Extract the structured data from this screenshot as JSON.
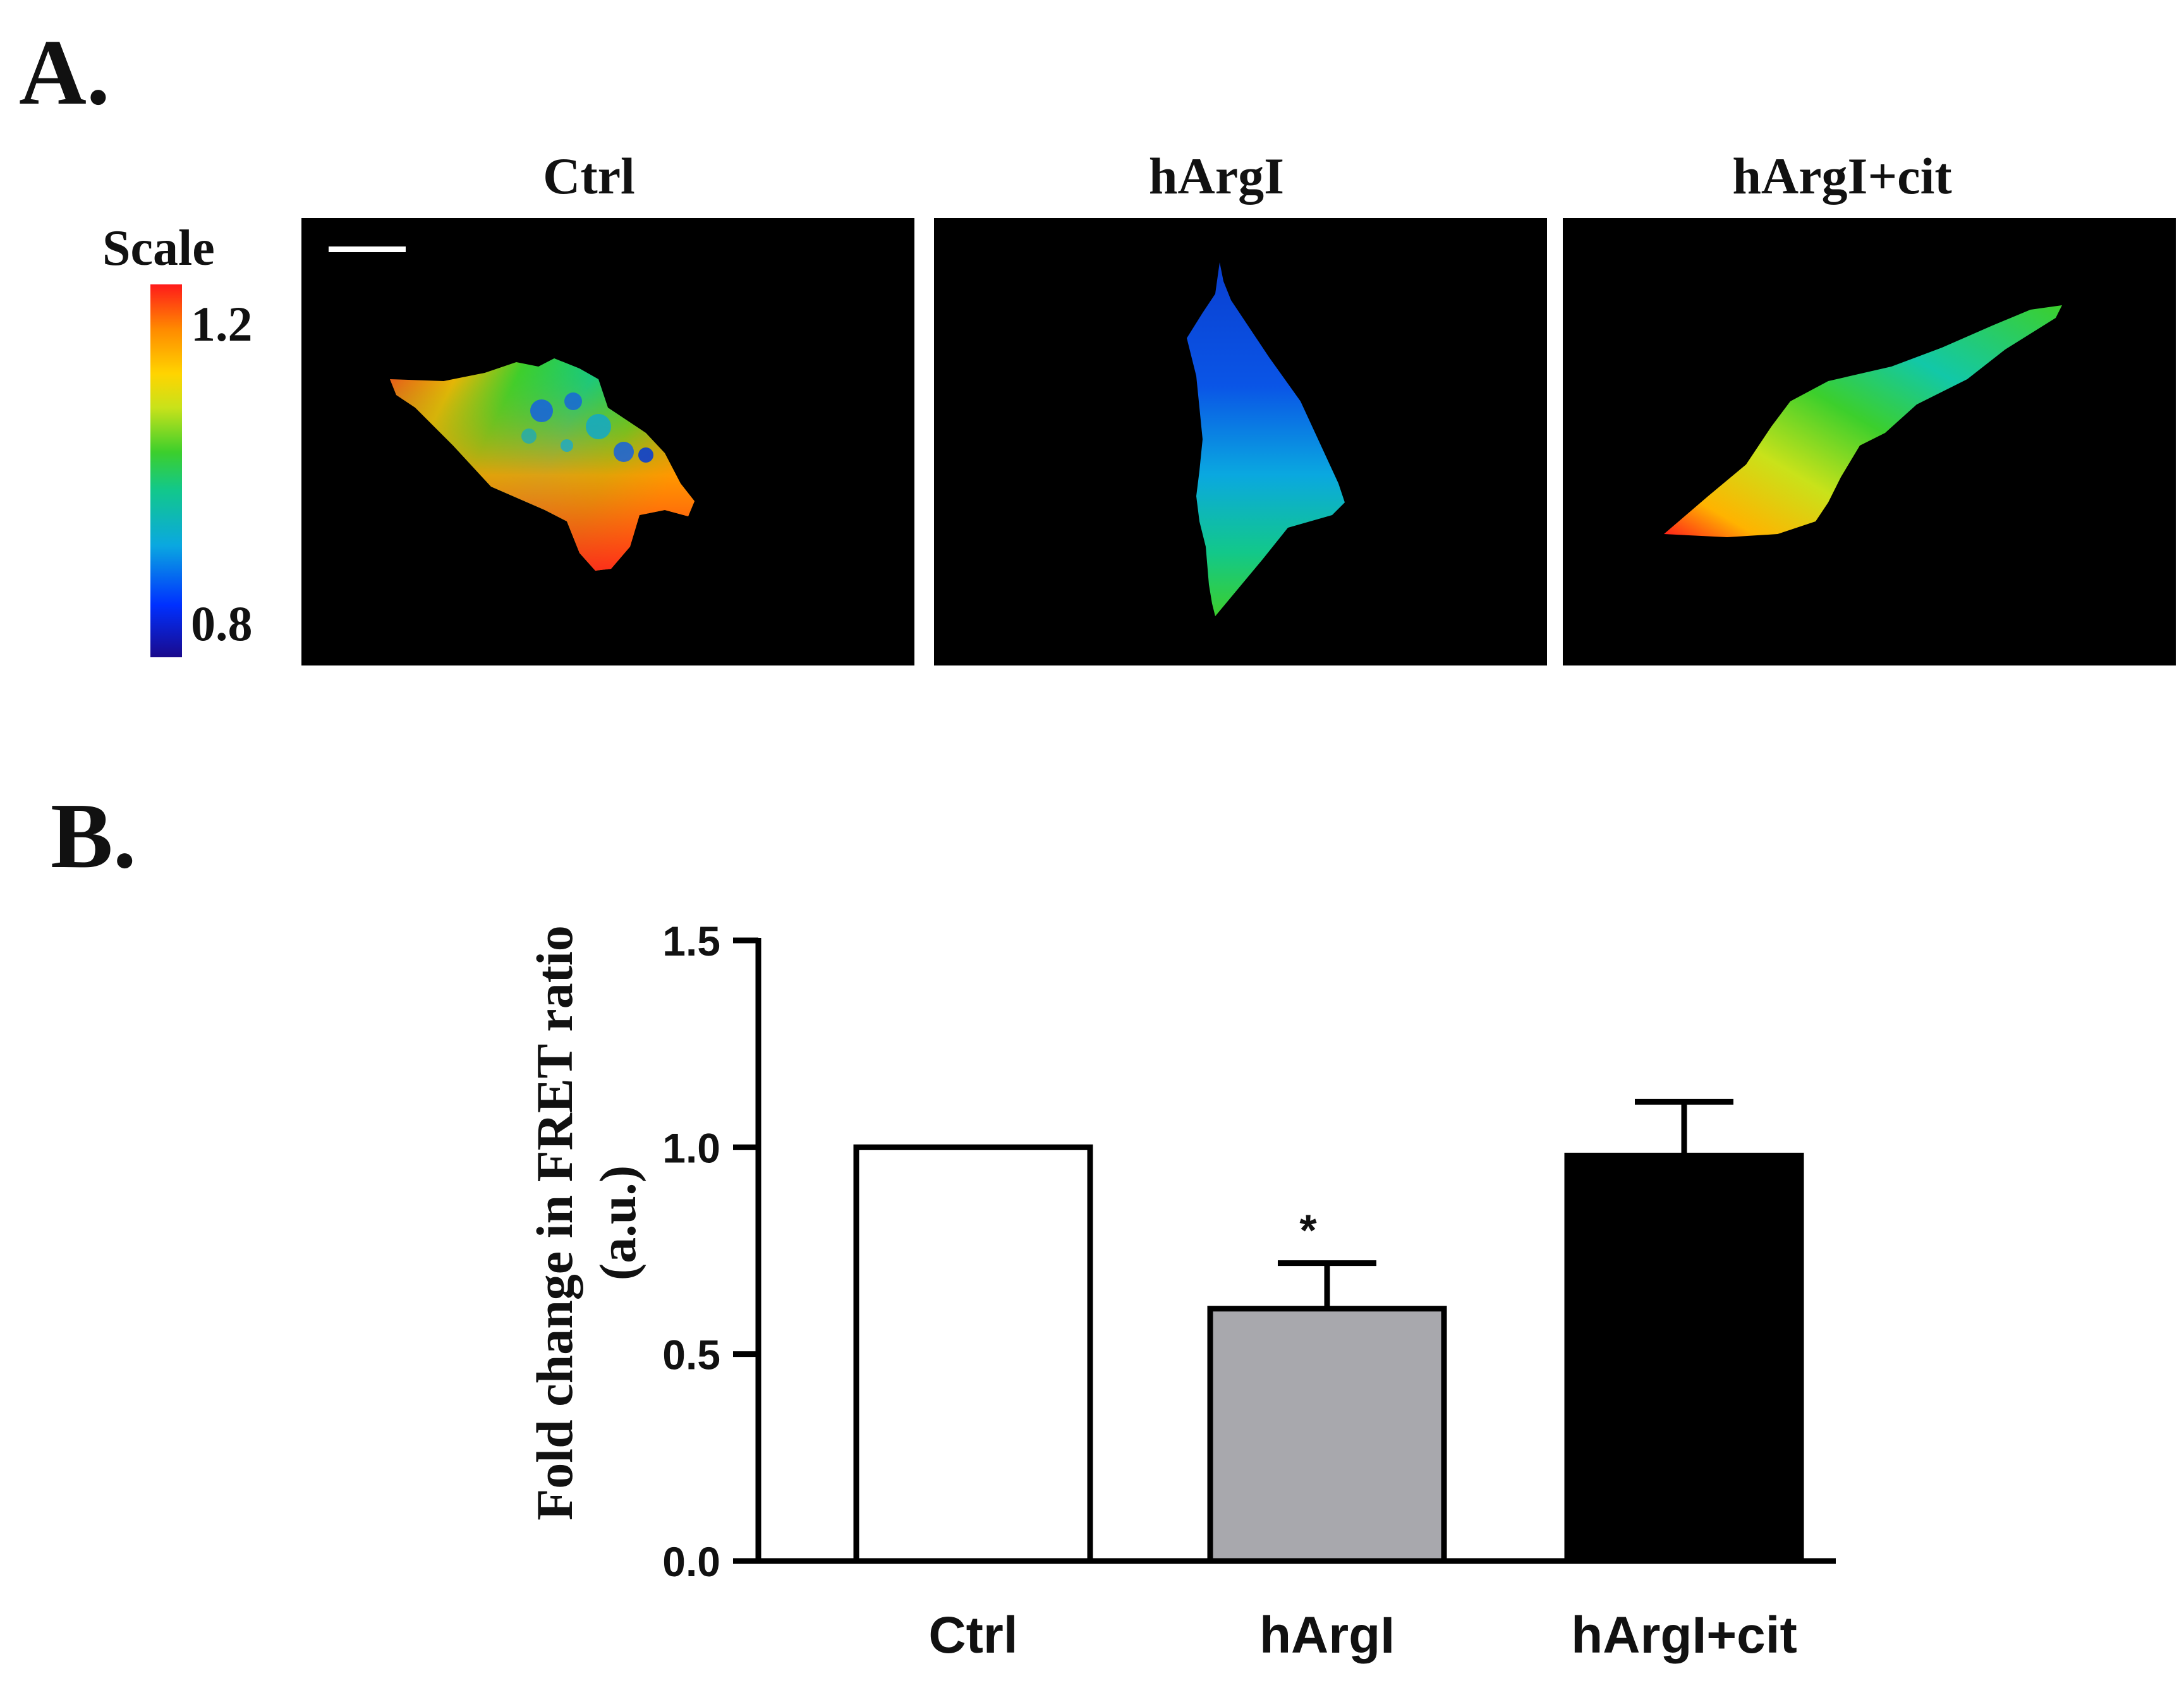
{
  "panel_a": {
    "letter": "A.",
    "images": [
      {
        "title": "Ctrl"
      },
      {
        "title": "hArgI"
      },
      {
        "title": "hArgI+cit"
      }
    ],
    "scale": {
      "title": "Scale",
      "max_label": "1.2",
      "min_label": "0.8",
      "colors": [
        "#1a0a8c",
        "#0030ff",
        "#0aa8e0",
        "#12c88a",
        "#3ccf2c",
        "#c9e21a",
        "#ffd400",
        "#ff8a00",
        "#ff1a1a"
      ]
    }
  },
  "panel_b": {
    "letter": "B."
  },
  "chart_data": {
    "type": "bar",
    "categories": [
      "Ctrl",
      "hArgI",
      "hArgI+cit"
    ],
    "values": [
      1.0,
      0.61,
      0.98
    ],
    "errors": [
      0.0,
      0.11,
      0.13
    ],
    "bar_colors": [
      "#ffffff",
      "#a8a8ad",
      "#000000"
    ],
    "significance": [
      "",
      "*",
      ""
    ],
    "ylabel_line1": "Fold change in FRET ratio",
    "ylabel_line2": "(a.u.)",
    "ylim": [
      0,
      1.5
    ],
    "yticks": [
      0.0,
      0.5,
      1.0,
      1.5
    ],
    "ytick_labels": [
      "0.0",
      "0.5",
      "1.0",
      "1.5"
    ],
    "grid": false
  }
}
